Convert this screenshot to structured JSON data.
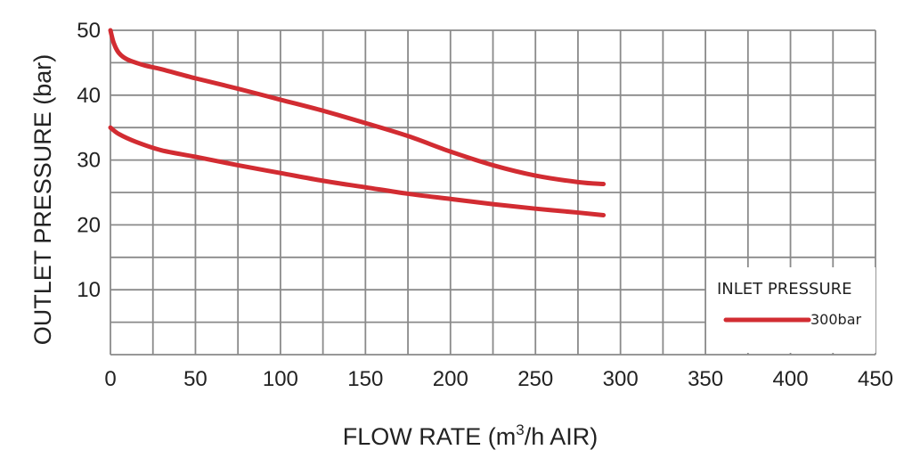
{
  "chart_data": {
    "type": "line",
    "xlabel": "FLOW RATE (m",
    "xlabel_sup": "3",
    "xlabel_tail": "/h AIR)",
    "ylabel": "OUTLET PRESSURE (bar)",
    "xlim": [
      0,
      450
    ],
    "ylim": [
      0,
      50
    ],
    "x_ticks": [
      "0",
      "50",
      "100",
      "150",
      "200",
      "250",
      "300",
      "350",
      "400",
      "450"
    ],
    "y_ticks": [
      "10",
      "20",
      "30",
      "40",
      "50"
    ],
    "grid": true,
    "grid_x_step": 25,
    "grid_y_step": 5,
    "legend": {
      "title": "INLET PRESSURE",
      "entry": "300bar",
      "position": "bottom-right"
    },
    "series": [
      {
        "x": [
          0,
          2,
          5,
          10,
          20,
          30,
          50,
          75,
          100,
          125,
          150,
          175,
          200,
          225,
          250,
          275,
          290
        ],
        "y": [
          50,
          48,
          46.5,
          45.5,
          44.6,
          44,
          42.6,
          41,
          39.3,
          37.6,
          35.7,
          33.7,
          31.3,
          29.2,
          27.6,
          26.6,
          26.3
        ]
      },
      {
        "x": [
          0,
          5,
          15,
          30,
          50,
          75,
          100,
          125,
          150,
          175,
          200,
          225,
          250,
          275,
          290
        ],
        "y": [
          35,
          34,
          32.8,
          31.5,
          30.5,
          29.2,
          28,
          26.8,
          25.8,
          24.8,
          24,
          23.2,
          22.5,
          21.9,
          21.5
        ]
      }
    ],
    "line_color": "#d22c32",
    "grid_color": "#8a8a8a"
  }
}
